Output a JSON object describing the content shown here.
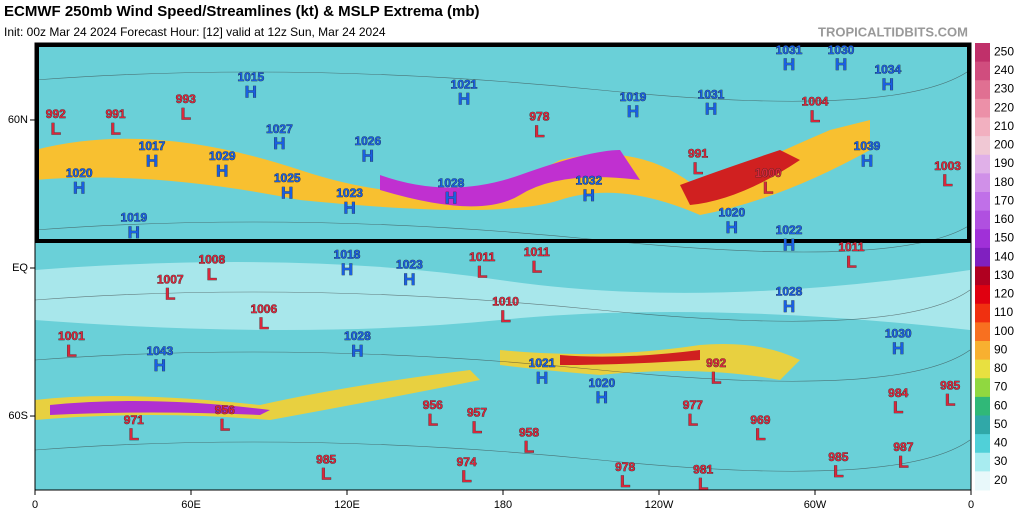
{
  "header": {
    "title": "ECMWF 250mb Wind Speed/Streamlines (kt) & MSLP Extrema (mb)",
    "subtitle": "Init: 00z Mar 24 2024   Forecast Hour: [12]   valid at 12z Sun, Mar 24 2024",
    "watermark": "TROPICALTIDBITS.COM"
  },
  "map": {
    "lon_ticks": [
      0,
      {
        "value": 60,
        "label": "60E"
      },
      {
        "value": 120,
        "label": "120E"
      },
      {
        "value": 180,
        "label": "180"
      },
      {
        "value": 240,
        "label": "120W"
      },
      {
        "value": 300,
        "label": "60W"
      },
      {
        "value": 360,
        "label": "0"
      }
    ],
    "lat_ticks": [
      {
        "value": 60,
        "label": "60N"
      },
      {
        "value": 0,
        "label": "EQ"
      },
      {
        "value": -60,
        "label": "60S"
      }
    ],
    "high_color": "#1a5fe0",
    "low_color": "#d8283c",
    "centers": [
      {
        "kind": "L",
        "pressure": 992,
        "lon": 8,
        "lat": 56
      },
      {
        "kind": "L",
        "pressure": 991,
        "lon": 31,
        "lat": 56
      },
      {
        "kind": "L",
        "pressure": 993,
        "lon": 58,
        "lat": 62
      },
      {
        "kind": "H",
        "pressure": 1015,
        "lon": 83,
        "lat": 71
      },
      {
        "kind": "H",
        "pressure": 1021,
        "lon": 165,
        "lat": 68
      },
      {
        "kind": "L",
        "pressure": 978,
        "lon": 194,
        "lat": 55
      },
      {
        "kind": "H",
        "pressure": 1019,
        "lon": 230,
        "lat": 63
      },
      {
        "kind": "H",
        "pressure": 1031,
        "lon": 260,
        "lat": 64
      },
      {
        "kind": "H",
        "pressure": 1031,
        "lon": 290,
        "lat": 82
      },
      {
        "kind": "H",
        "pressure": 1030,
        "lon": 310,
        "lat": 82
      },
      {
        "kind": "H",
        "pressure": 1034,
        "lon": 328,
        "lat": 74
      },
      {
        "kind": "L",
        "pressure": 1004,
        "lon": 300,
        "lat": 61
      },
      {
        "kind": "H",
        "pressure": 1027,
        "lon": 94,
        "lat": 50
      },
      {
        "kind": "H",
        "pressure": 1017,
        "lon": 45,
        "lat": 43
      },
      {
        "kind": "H",
        "pressure": 1026,
        "lon": 128,
        "lat": 45
      },
      {
        "kind": "H",
        "pressure": 1039,
        "lon": 320,
        "lat": 43
      },
      {
        "kind": "L",
        "pressure": 1003,
        "lon": 351,
        "lat": 35
      },
      {
        "kind": "H",
        "pressure": 1020,
        "lon": 17,
        "lat": 32
      },
      {
        "kind": "H",
        "pressure": 1029,
        "lon": 72,
        "lat": 39
      },
      {
        "kind": "H",
        "pressure": 1025,
        "lon": 97,
        "lat": 30
      },
      {
        "kind": "H",
        "pressure": 1023,
        "lon": 121,
        "lat": 24
      },
      {
        "kind": "H",
        "pressure": 1028,
        "lon": 160,
        "lat": 28
      },
      {
        "kind": "H",
        "pressure": 1032,
        "lon": 213,
        "lat": 29
      },
      {
        "kind": "L",
        "pressure": 991,
        "lon": 255,
        "lat": 40
      },
      {
        "kind": "L",
        "pressure": 1000,
        "lon": 282,
        "lat": 32
      },
      {
        "kind": "H",
        "pressure": 1020,
        "lon": 268,
        "lat": 16
      },
      {
        "kind": "H",
        "pressure": 1022,
        "lon": 290,
        "lat": 9
      },
      {
        "kind": "H",
        "pressure": 1019,
        "lon": 38,
        "lat": 14
      },
      {
        "kind": "L",
        "pressure": 1008,
        "lon": 68,
        "lat": -3
      },
      {
        "kind": "L",
        "pressure": 1007,
        "lon": 52,
        "lat": -11
      },
      {
        "kind": "H",
        "pressure": 1018,
        "lon": 120,
        "lat": -1
      },
      {
        "kind": "H",
        "pressure": 1023,
        "lon": 144,
        "lat": -5
      },
      {
        "kind": "L",
        "pressure": 1011,
        "lon": 172,
        "lat": -2
      },
      {
        "kind": "L",
        "pressure": 1011,
        "lon": 193,
        "lat": 0
      },
      {
        "kind": "L",
        "pressure": 1011,
        "lon": 314,
        "lat": 2
      },
      {
        "kind": "L",
        "pressure": 1006,
        "lon": 88,
        "lat": -23
      },
      {
        "kind": "L",
        "pressure": 1010,
        "lon": 181,
        "lat": -20
      },
      {
        "kind": "H",
        "pressure": 1028,
        "lon": 290,
        "lat": -16
      },
      {
        "kind": "L",
        "pressure": 1001,
        "lon": 14,
        "lat": -34
      },
      {
        "kind": "H",
        "pressure": 1043,
        "lon": 48,
        "lat": -40
      },
      {
        "kind": "H",
        "pressure": 1028,
        "lon": 124,
        "lat": -34
      },
      {
        "kind": "H",
        "pressure": 1030,
        "lon": 332,
        "lat": -33
      },
      {
        "kind": "H",
        "pressure": 1021,
        "lon": 195,
        "lat": -45
      },
      {
        "kind": "L",
        "pressure": 992,
        "lon": 262,
        "lat": -45
      },
      {
        "kind": "H",
        "pressure": 1020,
        "lon": 218,
        "lat": -53
      },
      {
        "kind": "L",
        "pressure": 984,
        "lon": 332,
        "lat": -57
      },
      {
        "kind": "L",
        "pressure": 985,
        "lon": 352,
        "lat": -54
      },
      {
        "kind": "L",
        "pressure": 971,
        "lon": 38,
        "lat": -68
      },
      {
        "kind": "L",
        "pressure": 956,
        "lon": 73,
        "lat": -64
      },
      {
        "kind": "L",
        "pressure": 956,
        "lon": 153,
        "lat": -62
      },
      {
        "kind": "L",
        "pressure": 957,
        "lon": 170,
        "lat": -65
      },
      {
        "kind": "L",
        "pressure": 958,
        "lon": 190,
        "lat": -73
      },
      {
        "kind": "L",
        "pressure": 977,
        "lon": 253,
        "lat": -62
      },
      {
        "kind": "L",
        "pressure": 969,
        "lon": 279,
        "lat": -68
      },
      {
        "kind": "L",
        "pressure": 985,
        "lon": 112,
        "lat": -84
      },
      {
        "kind": "L",
        "pressure": 974,
        "lon": 166,
        "lat": -85
      },
      {
        "kind": "L",
        "pressure": 978,
        "lon": 227,
        "lat": -87
      },
      {
        "kind": "L",
        "pressure": 981,
        "lon": 257,
        "lat": -88
      },
      {
        "kind": "L",
        "pressure": 985,
        "lon": 309,
        "lat": -83
      },
      {
        "kind": "L",
        "pressure": 987,
        "lon": 334,
        "lat": -79
      }
    ]
  },
  "colorbar": {
    "levels": [
      250,
      240,
      230,
      220,
      210,
      200,
      190,
      180,
      170,
      160,
      150,
      140,
      130,
      120,
      110,
      100,
      90,
      80,
      70,
      60,
      50,
      40,
      30,
      20
    ],
    "colors": [
      "#c0306a",
      "#d04d7e",
      "#e07092",
      "#ec90a8",
      "#f2b0c0",
      "#f0c8d4",
      "#e0b0e8",
      "#d090e8",
      "#c070e8",
      "#b050e0",
      "#a030d8",
      "#8020c0",
      "#b00020",
      "#e00010",
      "#f03010",
      "#f87020",
      "#f8b030",
      "#e8e040",
      "#90d840",
      "#30b878",
      "#30a8a8",
      "#50d0d8",
      "#a8ecf0",
      "#e8f8fa"
    ]
  }
}
